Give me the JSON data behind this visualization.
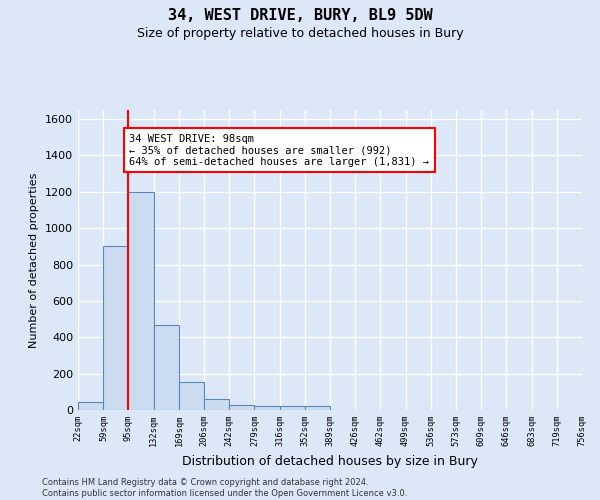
{
  "title": "34, WEST DRIVE, BURY, BL9 5DW",
  "subtitle": "Size of property relative to detached houses in Bury",
  "xlabel": "Distribution of detached houses by size in Bury",
  "ylabel": "Number of detached properties",
  "bar_edges": [
    22,
    59,
    95,
    132,
    169,
    206,
    242,
    279,
    316,
    352,
    389,
    426,
    462,
    499,
    536,
    573,
    609,
    646,
    683,
    719,
    756
  ],
  "bar_heights": [
    45,
    900,
    1200,
    470,
    155,
    60,
    30,
    20,
    20,
    20,
    0,
    0,
    0,
    0,
    0,
    0,
    0,
    0,
    0,
    0
  ],
  "bar_color": "#ccdcf0",
  "bar_edge_color": "#5588bb",
  "reference_line_x": 95,
  "reference_line_color": "red",
  "annotation_text": "34 WEST DRIVE: 98sqm\n← 35% of detached houses are smaller (992)\n64% of semi-detached houses are larger (1,831) →",
  "annotation_box_color": "white",
  "annotation_box_edge_color": "red",
  "ylim": [
    0,
    1650
  ],
  "yticks": [
    0,
    200,
    400,
    600,
    800,
    1000,
    1200,
    1400,
    1600
  ],
  "tick_labels": [
    "22sqm",
    "59sqm",
    "95sqm",
    "132sqm",
    "169sqm",
    "206sqm",
    "242sqm",
    "279sqm",
    "316sqm",
    "352sqm",
    "389sqm",
    "426sqm",
    "462sqm",
    "499sqm",
    "536sqm",
    "573sqm",
    "609sqm",
    "646sqm",
    "683sqm",
    "719sqm",
    "756sqm"
  ],
  "footer_text": "Contains HM Land Registry data © Crown copyright and database right 2024.\nContains public sector information licensed under the Open Government Licence v3.0.",
  "bg_color": "#dce8f8",
  "grid_color": "#ffffff",
  "title_fontsize": 11,
  "subtitle_fontsize": 9
}
